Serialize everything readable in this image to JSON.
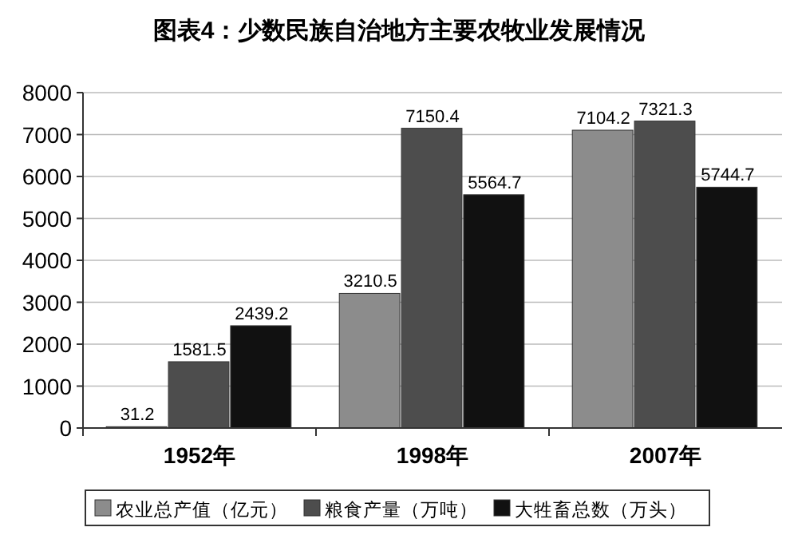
{
  "chart_data": {
    "type": "bar",
    "title": "图表4：少数民族自治地方主要农牧业发展情况",
    "categories": [
      "1952年",
      "1998年",
      "2007年"
    ],
    "series": [
      {
        "name": "农业总产值（亿元）",
        "color": "#8c8c8c",
        "values": [
          31.2,
          3210.5,
          7104.2
        ]
      },
      {
        "name": "粮食产量（万吨）",
        "color": "#4d4d4d",
        "values": [
          1581.5,
          7150.4,
          7321.3
        ]
      },
      {
        "name": "大牲畜总数（万头）",
        "color": "#111111",
        "values": [
          2439.2,
          5564.7,
          5744.7
        ]
      }
    ],
    "ylim": [
      0,
      8000
    ],
    "yticks": [
      0,
      1000,
      2000,
      3000,
      4000,
      5000,
      6000,
      7000,
      8000
    ],
    "grid": "y",
    "legend": "bottom",
    "data_labels": true
  }
}
